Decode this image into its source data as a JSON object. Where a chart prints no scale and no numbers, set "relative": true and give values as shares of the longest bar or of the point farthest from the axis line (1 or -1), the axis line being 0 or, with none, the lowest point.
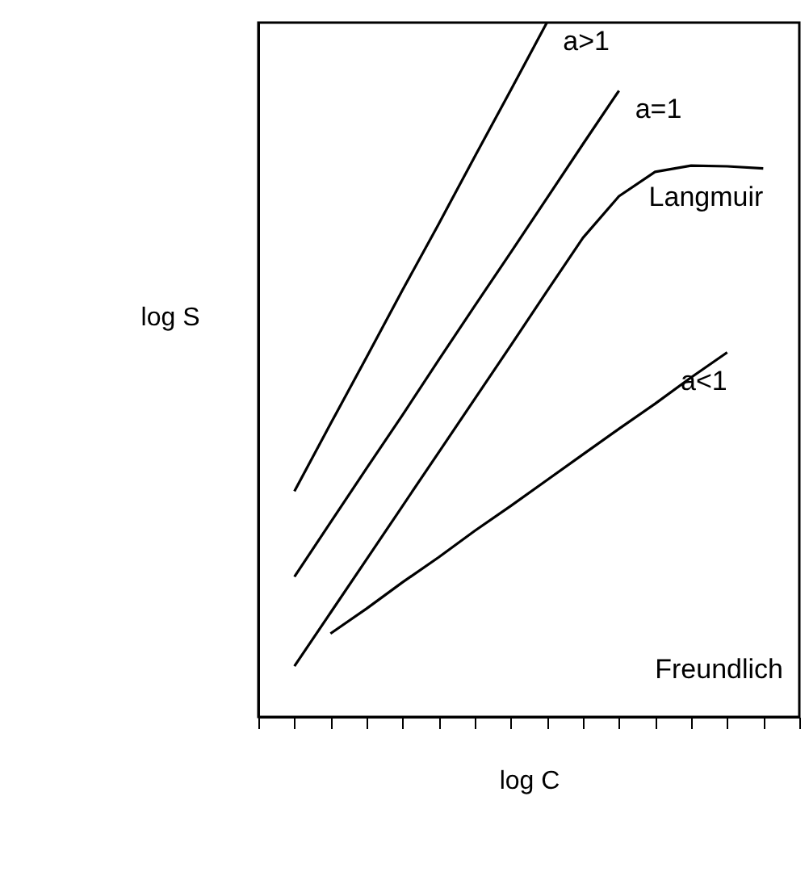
{
  "chart_data": {
    "type": "line",
    "relative": true,
    "xlabel": "log C",
    "ylabel": "log S",
    "categories": [
      null,
      null,
      null,
      null,
      null,
      null,
      null,
      null,
      null,
      null,
      null,
      null,
      null,
      null,
      null,
      null
    ],
    "series": [
      {
        "name": "a>1",
        "color": "#000000",
        "values": [
          null,
          0.325,
          0.422,
          0.518,
          0.615,
          0.71,
          0.807,
          0.903,
          1.0,
          null,
          null,
          null,
          null,
          null,
          null,
          null
        ]
      },
      {
        "name": "a=1",
        "color": "#000000",
        "values": [
          null,
          0.202,
          0.28,
          0.358,
          0.435,
          0.514,
          0.592,
          0.669,
          0.747,
          0.825,
          0.902,
          null,
          null,
          null,
          null,
          null
        ]
      },
      {
        "name": "Langmuir",
        "color": "#000000",
        "values": [
          null,
          0.073,
          0.15,
          0.227,
          0.304,
          0.381,
          0.458,
          0.535,
          0.613,
          0.69,
          0.75,
          0.785,
          0.794,
          0.793,
          0.79,
          null
        ]
      },
      {
        "name": "a<1",
        "color": "#000000",
        "values": [
          null,
          null,
          0.12,
          0.156,
          0.194,
          0.23,
          0.268,
          0.304,
          0.341,
          0.378,
          0.415,
          0.451,
          0.489,
          0.525,
          null,
          null
        ]
      }
    ],
    "annotations": [
      "Freundlich"
    ],
    "grid": false,
    "marker": "none",
    "line_style": "solid"
  }
}
